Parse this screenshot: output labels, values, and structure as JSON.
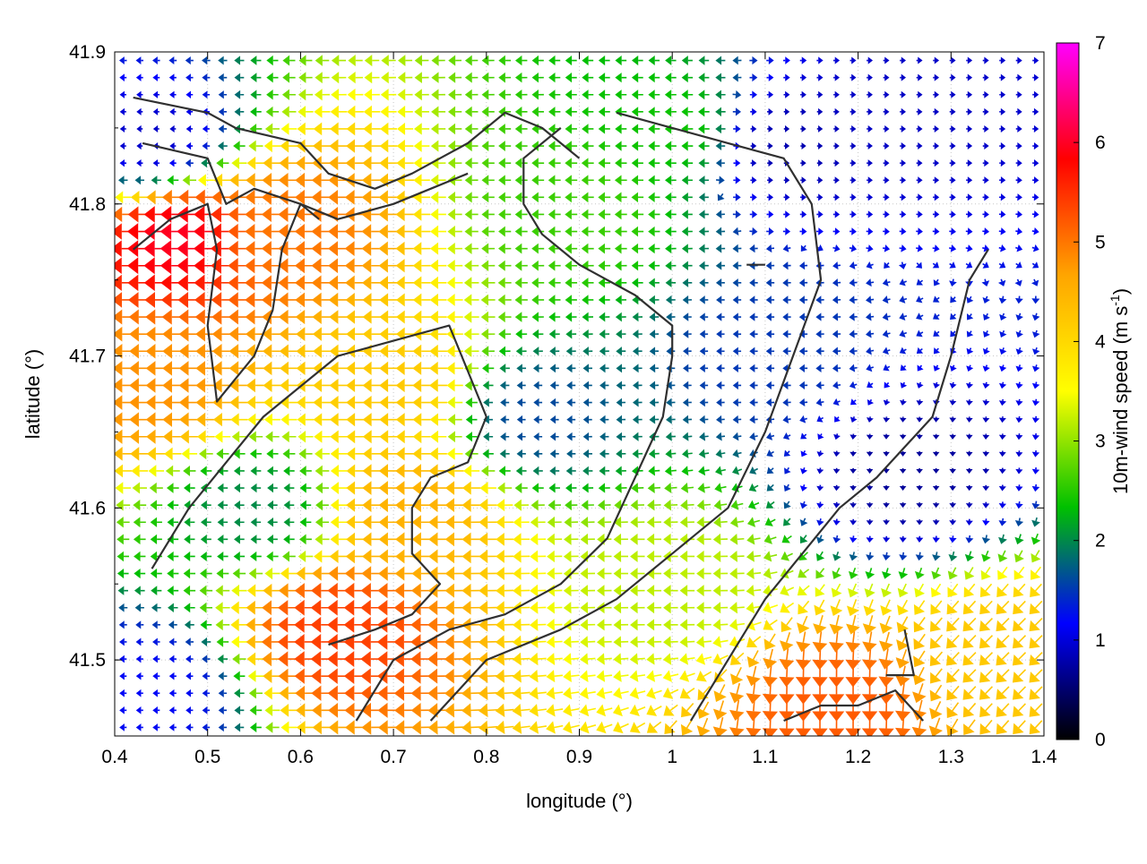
{
  "chart_data": {
    "type": "vector-field",
    "xlabel": "longitude (°)",
    "ylabel": "latitude (°)",
    "xlim": [
      0.4,
      1.4
    ],
    "ylim": [
      41.45,
      41.9
    ],
    "x_ticks": [
      "0.4",
      "0.5",
      "0.6",
      "0.7",
      "0.8",
      "0.9",
      "1",
      "1.1",
      "1.2",
      "1.3",
      "1.4"
    ],
    "y_ticks": [
      "41.5",
      "41.6",
      "41.7",
      "41.8",
      "41.9"
    ],
    "x_tick_values": [
      0.4,
      0.5,
      0.6,
      0.7,
      0.8,
      0.9,
      1.0,
      1.1,
      1.2,
      1.3,
      1.4
    ],
    "y_tick_values": [
      41.5,
      41.6,
      41.7,
      41.8,
      41.9
    ],
    "grid": true,
    "colorbar": {
      "label": "10m-wind speed (m s-1)",
      "label_main": "10m-wind speed (m s",
      "label_sup": "-1",
      "label_close": ")",
      "min": 0,
      "max": 7,
      "ticks": [
        "0",
        "1",
        "2",
        "3",
        "4",
        "5",
        "6",
        "7"
      ],
      "tick_values": [
        0,
        1,
        2,
        3,
        4,
        5,
        6,
        7
      ],
      "colors": [
        "#000000",
        "#0000ff",
        "#00c000",
        "#ffff00",
        "#ffa500",
        "#ff0000",
        "#ff00ff"
      ]
    },
    "speed_regions": [
      {
        "lon": 0.47,
        "lat": 41.78,
        "speed": 6.0,
        "dir": "west"
      },
      {
        "lon": 0.58,
        "lat": 41.78,
        "speed": 5.0,
        "dir": "west"
      },
      {
        "lon": 0.44,
        "lat": 41.68,
        "speed": 4.8,
        "dir": "west"
      },
      {
        "lon": 0.64,
        "lat": 41.52,
        "speed": 5.4,
        "dir": "west"
      },
      {
        "lon": 0.72,
        "lat": 41.6,
        "speed": 4.5,
        "dir": "west"
      },
      {
        "lon": 0.7,
        "lat": 41.68,
        "speed": 4.2,
        "dir": "west"
      },
      {
        "lon": 0.55,
        "lat": 41.6,
        "speed": 2.0,
        "dir": "west"
      },
      {
        "lon": 0.44,
        "lat": 41.48,
        "speed": 1.2,
        "dir": "west"
      },
      {
        "lon": 0.44,
        "lat": 41.84,
        "speed": 0.9,
        "dir": "west"
      },
      {
        "lon": 0.85,
        "lat": 41.66,
        "speed": 1.6,
        "dir": "west"
      },
      {
        "lon": 1.0,
        "lat": 41.85,
        "speed": 2.4,
        "dir": "west"
      },
      {
        "lon": 1.12,
        "lat": 41.84,
        "speed": 0.8,
        "dir": "east"
      },
      {
        "lon": 1.25,
        "lat": 41.86,
        "speed": 0.9,
        "dir": "east"
      },
      {
        "lon": 1.25,
        "lat": 41.62,
        "speed": 0.7,
        "dir": "south"
      },
      {
        "lon": 1.18,
        "lat": 41.47,
        "speed": 5.2,
        "dir": "south"
      },
      {
        "lon": 1.35,
        "lat": 41.5,
        "speed": 4.2,
        "dir": "southwest"
      },
      {
        "lon": 1.0,
        "lat": 41.55,
        "speed": 3.2,
        "dir": "west"
      },
      {
        "lon": 1.1,
        "lat": 41.7,
        "speed": 1.5,
        "dir": "west"
      },
      {
        "lon": 0.9,
        "lat": 41.8,
        "speed": 2.6,
        "dir": "west"
      }
    ],
    "contours": [
      [
        [
          0.42,
          41.87
        ],
        [
          0.5,
          41.86
        ],
        [
          0.53,
          41.85
        ],
        [
          0.6,
          41.84
        ],
        [
          0.63,
          41.82
        ],
        [
          0.68,
          41.81
        ],
        [
          0.72,
          41.82
        ],
        [
          0.78,
          41.84
        ],
        [
          0.82,
          41.86
        ],
        [
          0.86,
          41.85
        ],
        [
          0.9,
          41.83
        ]
      ],
      [
        [
          0.43,
          41.84
        ],
        [
          0.5,
          41.83
        ],
        [
          0.52,
          41.8
        ],
        [
          0.55,
          41.81
        ],
        [
          0.6,
          41.8
        ],
        [
          0.64,
          41.79
        ],
        [
          0.7,
          41.8
        ],
        [
          0.74,
          41.81
        ],
        [
          0.78,
          41.82
        ]
      ],
      [
        [
          0.42,
          41.77
        ],
        [
          0.46,
          41.79
        ],
        [
          0.5,
          41.8
        ],
        [
          0.51,
          41.77
        ],
        [
          0.5,
          41.72
        ],
        [
          0.51,
          41.67
        ],
        [
          0.55,
          41.7
        ],
        [
          0.57,
          41.73
        ],
        [
          0.58,
          41.77
        ],
        [
          0.6,
          41.8
        ],
        [
          0.62,
          41.79
        ]
      ],
      [
        [
          0.44,
          41.56
        ],
        [
          0.48,
          41.6
        ],
        [
          0.52,
          41.63
        ],
        [
          0.56,
          41.66
        ],
        [
          0.6,
          41.68
        ],
        [
          0.64,
          41.7
        ],
        [
          0.7,
          41.71
        ],
        [
          0.76,
          41.72
        ],
        [
          0.78,
          41.69
        ],
        [
          0.8,
          41.66
        ],
        [
          0.78,
          41.63
        ],
        [
          0.74,
          41.62
        ],
        [
          0.72,
          41.6
        ],
        [
          0.72,
          41.57
        ],
        [
          0.75,
          41.55
        ],
        [
          0.72,
          41.53
        ],
        [
          0.68,
          41.52
        ],
        [
          0.63,
          41.51
        ]
      ],
      [
        [
          0.66,
          41.46
        ],
        [
          0.7,
          41.5
        ],
        [
          0.76,
          41.52
        ],
        [
          0.82,
          41.53
        ],
        [
          0.88,
          41.55
        ],
        [
          0.93,
          41.58
        ],
        [
          0.96,
          41.62
        ],
        [
          0.99,
          41.66
        ],
        [
          1.0,
          41.7
        ],
        [
          1.0,
          41.72
        ],
        [
          0.96,
          41.74
        ],
        [
          0.9,
          41.76
        ],
        [
          0.86,
          41.78
        ],
        [
          0.84,
          41.8
        ],
        [
          0.84,
          41.83
        ],
        [
          0.88,
          41.85
        ]
      ],
      [
        [
          0.74,
          41.46
        ],
        [
          0.8,
          41.5
        ],
        [
          0.88,
          41.52
        ],
        [
          0.94,
          41.54
        ],
        [
          1.0,
          41.57
        ],
        [
          1.06,
          41.6
        ],
        [
          1.1,
          41.65
        ],
        [
          1.13,
          41.7
        ],
        [
          1.16,
          41.75
        ],
        [
          1.15,
          41.8
        ],
        [
          1.12,
          41.83
        ],
        [
          1.06,
          41.84
        ],
        [
          1.0,
          41.85
        ],
        [
          0.94,
          41.86
        ]
      ],
      [
        [
          1.02,
          41.46
        ],
        [
          1.06,
          41.5
        ],
        [
          1.1,
          41.54
        ],
        [
          1.14,
          41.57
        ],
        [
          1.18,
          41.6
        ],
        [
          1.22,
          41.62
        ],
        [
          1.25,
          41.64
        ],
        [
          1.28,
          41.66
        ],
        [
          1.3,
          41.7
        ],
        [
          1.32,
          41.75
        ],
        [
          1.34,
          41.77
        ]
      ],
      [
        [
          1.12,
          41.46
        ],
        [
          1.16,
          41.47
        ],
        [
          1.2,
          41.47
        ],
        [
          1.24,
          41.48
        ],
        [
          1.27,
          41.46
        ]
      ],
      [
        [
          1.25,
          41.52
        ],
        [
          1.26,
          41.49
        ],
        [
          1.23,
          41.49
        ]
      ],
      [
        [
          1.08,
          41.76
        ],
        [
          1.09,
          41.76
        ],
        [
          1.1,
          41.76
        ]
      ]
    ]
  }
}
